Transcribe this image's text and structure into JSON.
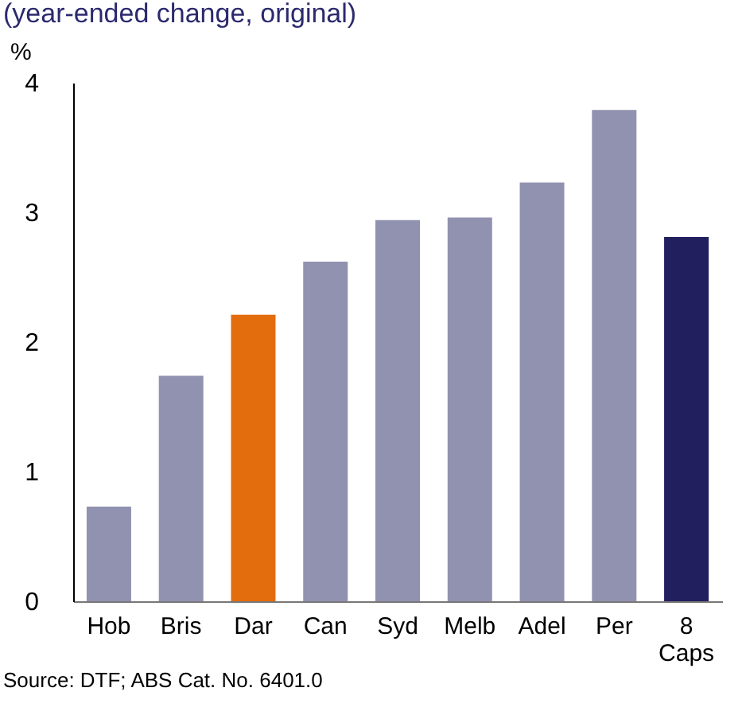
{
  "chart_data": {
    "type": "bar",
    "title": "(year-ended change, original)",
    "ylabel": "%",
    "categories": [
      "Hob",
      "Bris",
      "Dar",
      "Can",
      "Syd",
      "Melb",
      "Adel",
      "Per",
      "8 Caps"
    ],
    "values": [
      0.73,
      1.74,
      2.21,
      2.62,
      2.94,
      2.96,
      3.23,
      3.79,
      2.81
    ],
    "colors": [
      "#9192b0",
      "#9192b0",
      "#e36c0c",
      "#9192b0",
      "#9192b0",
      "#9192b0",
      "#9192b0",
      "#9192b0",
      "#211f5e"
    ],
    "ylim": [
      0,
      4
    ],
    "yticks": [
      0,
      1,
      2,
      3,
      4
    ],
    "grid": false,
    "annotations": [
      "Source: DTF; ABS Cat. No. 6401.0"
    ]
  }
}
